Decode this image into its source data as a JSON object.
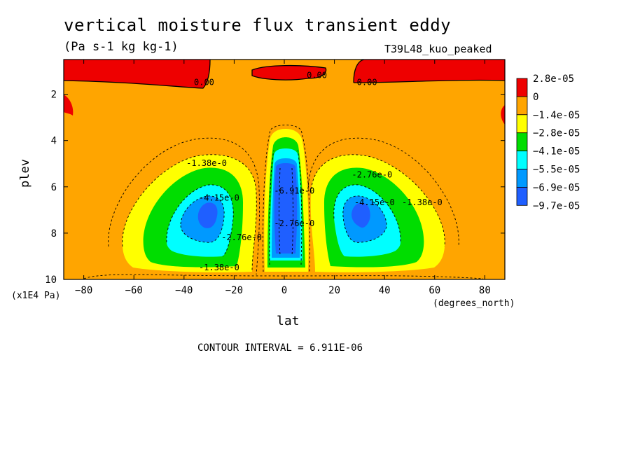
{
  "title": "vertical moisture flux transient eddy",
  "units": "(Pa s-1 kg kg-1)",
  "run_label": "T39L48_kuo_peaked",
  "contour_interval": "CONTOUR INTERVAL = 6.911E-06",
  "colors": {
    "red": "#ee0000",
    "orange": "#ffa500",
    "yellow": "#ffff00",
    "green": "#00dd00",
    "cyan": "#00ffff",
    "lightblue": "#0099ff",
    "blue": "#1f5fff"
  },
  "chart_data": {
    "type": "contour",
    "xlabel": "lat",
    "xunits": "(degrees_north)",
    "ylabel": "plev",
    "yunits": "(x1E4 Pa)",
    "xlim": [
      -88,
      88
    ],
    "ylim": [
      10,
      0.5
    ],
    "xticks": [
      -80,
      -60,
      -40,
      -20,
      0,
      20,
      40,
      60,
      80
    ],
    "yticks": [
      2,
      4,
      6,
      8,
      10
    ],
    "legend": {
      "position": "right",
      "labels": [
        "2.8e-05",
        "0",
        "-1.4e-05",
        "-2.8e-05",
        "-4.1e-05",
        "-5.5e-05",
        "-6.9e-05",
        "-9.7e-05"
      ],
      "fills": [
        "red",
        "orange",
        "yellow",
        "green",
        "cyan",
        "lightblue",
        "blue"
      ]
    },
    "contour_labels": [
      {
        "text": "0.00",
        "lat": -32,
        "plev": 1.6
      },
      {
        "text": "0.00",
        "lat": 13,
        "plev": 1.3
      },
      {
        "text": "0.00",
        "lat": 33,
        "plev": 1.6
      },
      {
        "text": "-1.38e-0",
        "lat": -31,
        "plev": 5.1
      },
      {
        "text": "-2.76e-0",
        "lat": 35,
        "plev": 5.6
      },
      {
        "text": "-1.38e-0",
        "lat": 55,
        "plev": 6.8
      },
      {
        "text": "-4.15e-0",
        "lat": 36,
        "plev": 6.8
      },
      {
        "text": "-4.15e-0",
        "lat": -26,
        "plev": 6.6
      },
      {
        "text": "-2.76e-0",
        "lat": -17,
        "plev": 8.3
      },
      {
        "text": "-1.38e-0",
        "lat": -26,
        "plev": 9.6
      },
      {
        "text": "-2.76e-0",
        "lat": 4,
        "plev": 7.7
      },
      {
        "text": "-6.91e-0",
        "lat": 4,
        "plev": 6.3
      }
    ]
  }
}
